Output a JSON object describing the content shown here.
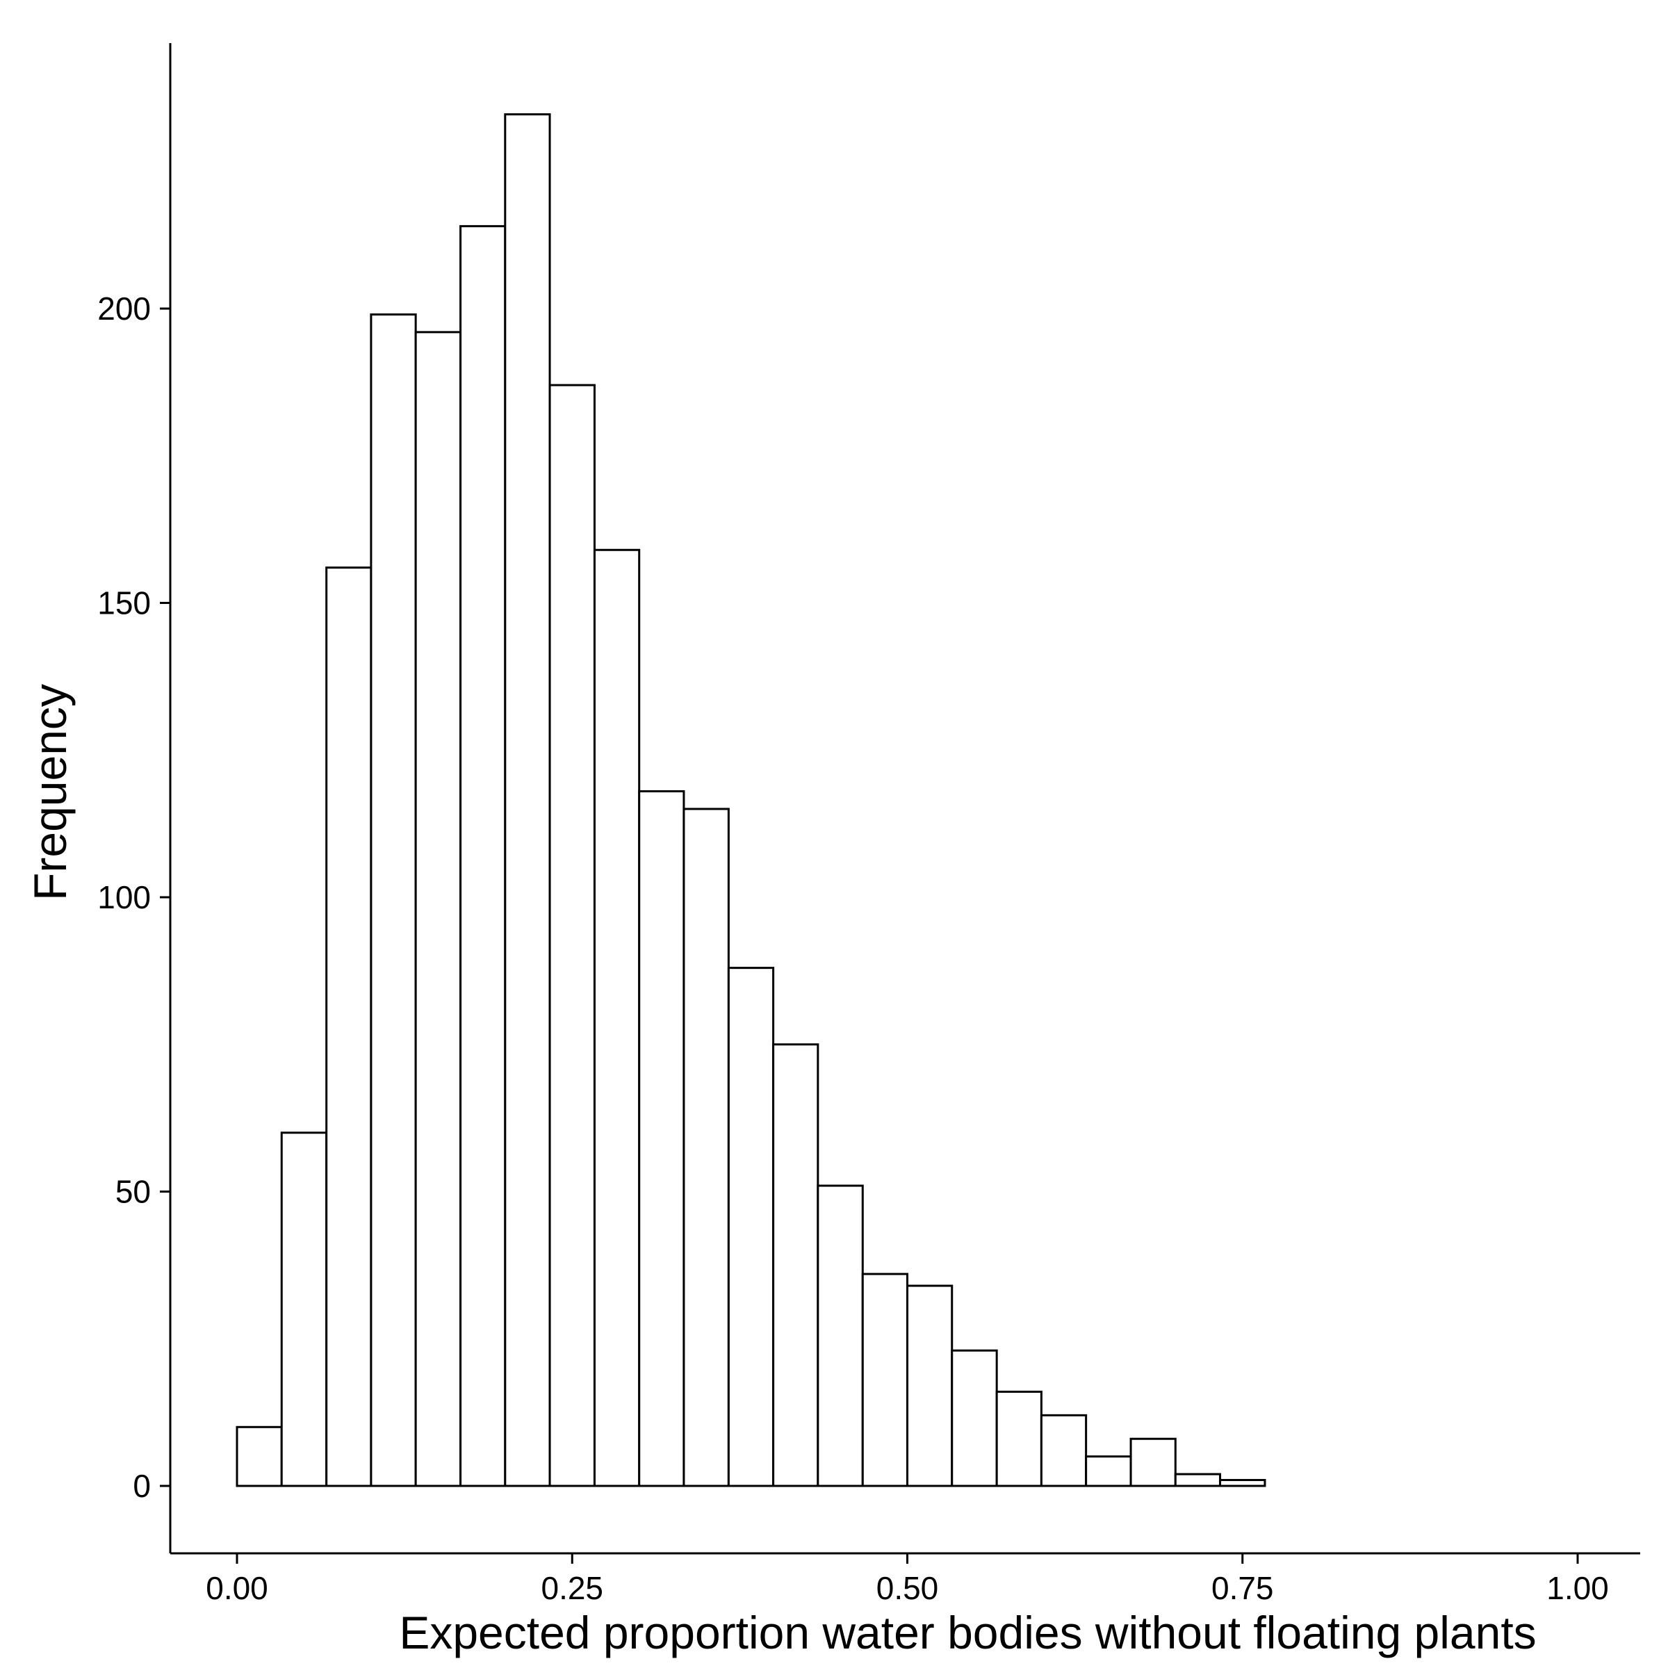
{
  "chart_data": {
    "type": "bar",
    "subtype": "histogram",
    "title": "",
    "xlabel": "Expected proportion water bodies without floating plants",
    "ylabel": "Frequency",
    "xlim": [
      0.0,
      1.0
    ],
    "ylim": [
      0,
      235
    ],
    "x_ticks": [
      0.0,
      0.25,
      0.5,
      0.75,
      1.0
    ],
    "x_tick_labels": [
      "0.00",
      "0.25",
      "0.50",
      "0.75",
      "1.00"
    ],
    "y_ticks": [
      0,
      50,
      100,
      150,
      200
    ],
    "y_tick_labels": [
      "0",
      "50",
      "100",
      "150",
      "200"
    ],
    "bin_edges": [
      0.0,
      0.0333,
      0.0667,
      0.1,
      0.1333,
      0.1667,
      0.2,
      0.2333,
      0.2667,
      0.3,
      0.3333,
      0.3667,
      0.4,
      0.4333,
      0.4667,
      0.5,
      0.5333,
      0.5667,
      0.6,
      0.6333,
      0.6667,
      0.7,
      0.7333,
      0.7667,
      0.8,
      0.8333,
      0.8667,
      0.9,
      0.9333,
      0.9667,
      1.0
    ],
    "values": [
      10,
      60,
      156,
      199,
      196,
      214,
      233,
      187,
      159,
      118,
      115,
      88,
      75,
      51,
      36,
      34,
      23,
      16,
      12,
      5,
      8,
      2,
      1,
      0,
      0,
      0,
      0,
      0,
      0,
      0
    ],
    "bar_fill": "#ffffff",
    "bar_stroke": "#000000",
    "grid": false,
    "legend": "none"
  }
}
